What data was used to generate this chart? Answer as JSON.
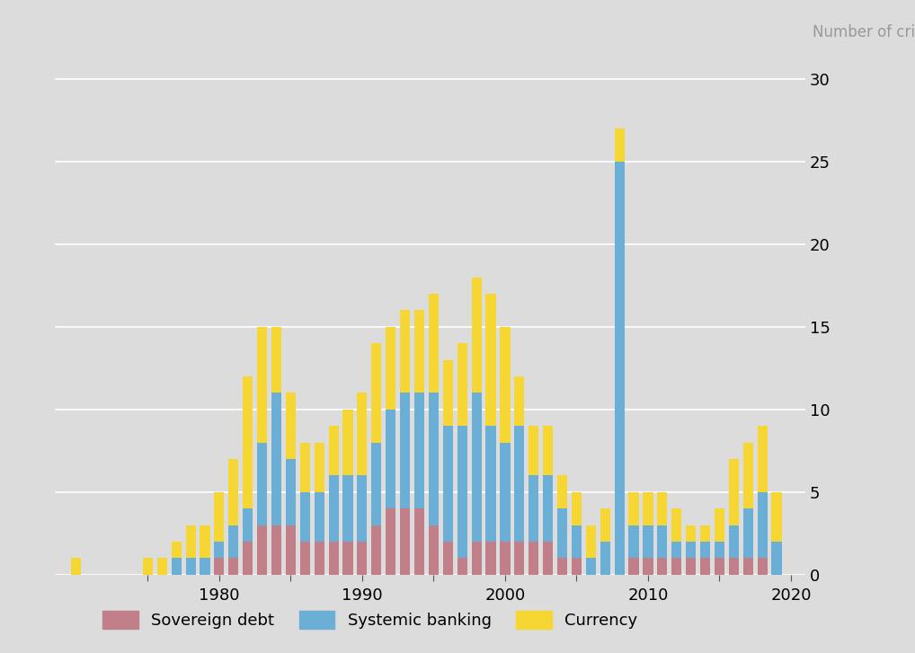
{
  "title": "Number of crises",
  "background_color": "#dcdcdc",
  "colors": {
    "sovereign_debt": "#c17f8a",
    "systemic_banking": "#6baed6",
    "currency": "#f5d633"
  },
  "years": [
    1970,
    1971,
    1972,
    1973,
    1974,
    1975,
    1976,
    1977,
    1978,
    1979,
    1980,
    1981,
    1982,
    1983,
    1984,
    1985,
    1986,
    1987,
    1988,
    1989,
    1990,
    1991,
    1992,
    1993,
    1994,
    1995,
    1996,
    1997,
    1998,
    1999,
    2000,
    2001,
    2002,
    2003,
    2004,
    2005,
    2006,
    2007,
    2008,
    2009,
    2010,
    2011,
    2012,
    2013,
    2014,
    2015,
    2016,
    2017,
    2018,
    2019
  ],
  "sovereign_debt": [
    0,
    0,
    0,
    0,
    0,
    0,
    0,
    0,
    0,
    0,
    1,
    1,
    2,
    3,
    3,
    3,
    2,
    2,
    2,
    2,
    2,
    3,
    4,
    4,
    4,
    3,
    2,
    1,
    2,
    2,
    2,
    2,
    2,
    2,
    1,
    1,
    0,
    0,
    0,
    1,
    1,
    1,
    1,
    1,
    1,
    1,
    1,
    1,
    1,
    0
  ],
  "systemic_banking": [
    0,
    0,
    0,
    0,
    0,
    0,
    0,
    1,
    1,
    1,
    1,
    2,
    2,
    5,
    8,
    4,
    3,
    3,
    4,
    4,
    4,
    5,
    6,
    7,
    7,
    8,
    7,
    8,
    9,
    7,
    6,
    7,
    4,
    4,
    3,
    2,
    1,
    2,
    25,
    2,
    2,
    2,
    1,
    1,
    1,
    1,
    2,
    3,
    4,
    2
  ],
  "currency": [
    1,
    0,
    0,
    0,
    0,
    1,
    1,
    1,
    2,
    2,
    3,
    4,
    8,
    7,
    4,
    4,
    3,
    3,
    3,
    4,
    5,
    6,
    5,
    5,
    5,
    6,
    4,
    5,
    7,
    8,
    7,
    3,
    3,
    3,
    2,
    2,
    2,
    2,
    2,
    2,
    2,
    2,
    2,
    1,
    1,
    2,
    4,
    4,
    4,
    3
  ],
  "ylim": [
    0,
    32
  ],
  "yticks": [
    0,
    5,
    10,
    15,
    20,
    25,
    30
  ],
  "xtick_positions": [
    1975,
    1980,
    1985,
    1990,
    1995,
    2000,
    2005,
    2010,
    2015,
    2020
  ],
  "xtick_labels": [
    "",
    "1980",
    "",
    "1990",
    "",
    "2000",
    "",
    "2010",
    "",
    "2020"
  ],
  "legend_labels": [
    "Sovereign debt",
    "Systemic banking",
    "Currency"
  ]
}
